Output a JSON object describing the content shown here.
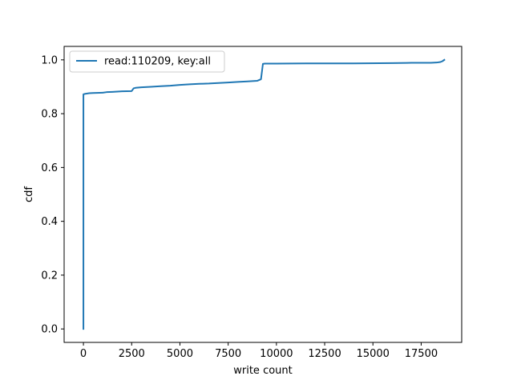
{
  "chart_data": {
    "type": "line",
    "title": "",
    "xlabel": "write count",
    "ylabel": "cdf",
    "xlim": [
      -1000,
      19600
    ],
    "ylim": [
      -0.05,
      1.05
    ],
    "x_ticks": [
      0,
      2500,
      5000,
      7500,
      10000,
      12500,
      15000,
      17500
    ],
    "y_ticks": [
      0.0,
      0.2,
      0.4,
      0.6,
      0.8,
      1.0
    ],
    "x_tick_labels": [
      "0",
      "2500",
      "5000",
      "7500",
      "10000",
      "12500",
      "15000",
      "17500"
    ],
    "y_tick_labels": [
      "0.0",
      "0.2",
      "0.4",
      "0.6",
      "0.8",
      "1.0"
    ],
    "grid": false,
    "legend": {
      "placement": "upper left",
      "entries": [
        "read:110209, key:all"
      ]
    },
    "series": [
      {
        "name": "read:110209, key:all",
        "color": "#1f77b4",
        "x": [
          0,
          0,
          100,
          200,
          300,
          500,
          1000,
          1200,
          1500,
          2000,
          2500,
          2600,
          2700,
          3000,
          3500,
          4000,
          4500,
          5000,
          5500,
          6000,
          6500,
          7000,
          7500,
          8000,
          8500,
          9000,
          9200,
          9300,
          9400,
          10000,
          12000,
          14000,
          16000,
          17000,
          18000,
          18300,
          18500,
          18600,
          18700
        ],
        "y": [
          0.0,
          0.872,
          0.874,
          0.875,
          0.876,
          0.877,
          0.878,
          0.88,
          0.881,
          0.883,
          0.884,
          0.894,
          0.896,
          0.898,
          0.9,
          0.902,
          0.904,
          0.907,
          0.909,
          0.911,
          0.912,
          0.914,
          0.916,
          0.918,
          0.92,
          0.922,
          0.928,
          0.985,
          0.986,
          0.986,
          0.987,
          0.987,
          0.988,
          0.989,
          0.989,
          0.99,
          0.992,
          0.995,
          1.0
        ]
      }
    ]
  }
}
